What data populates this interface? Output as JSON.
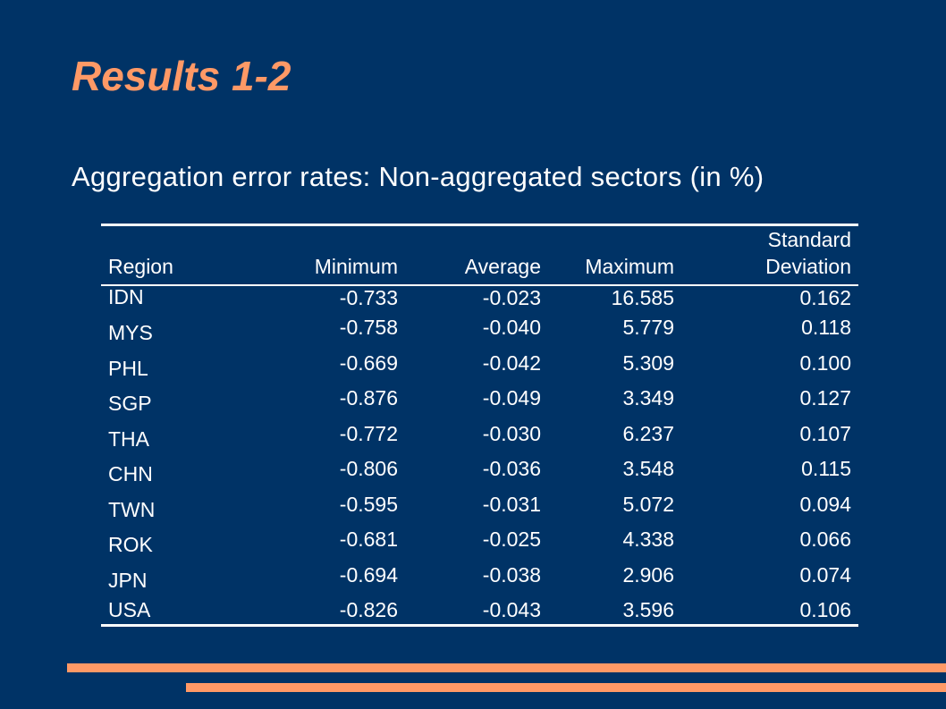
{
  "slide": {
    "title": "Results 1-2",
    "subtitle": "Aggregation error rates: Non-aggregated sectors (in %)"
  },
  "table": {
    "headers": {
      "region": "Region",
      "minimum": "Minimum",
      "average": "Average",
      "maximum": "Maximum",
      "std_line1": "Standard",
      "std_line2": "Deviation"
    },
    "rows": [
      {
        "region": "IDN",
        "minimum": "-0.733",
        "average": "-0.023",
        "maximum": "16.585",
        "std": "0.162"
      },
      {
        "region": "MYS",
        "minimum": "-0.758",
        "average": "-0.040",
        "maximum": "5.779",
        "std": "0.118"
      },
      {
        "region": "PHL",
        "minimum": "-0.669",
        "average": "-0.042",
        "maximum": "5.309",
        "std": "0.100"
      },
      {
        "region": "SGP",
        "minimum": "-0.876",
        "average": "-0.049",
        "maximum": "3.349",
        "std": "0.127"
      },
      {
        "region": "THA",
        "minimum": "-0.772",
        "average": "-0.030",
        "maximum": "6.237",
        "std": "0.107"
      },
      {
        "region": "CHN",
        "minimum": "-0.806",
        "average": "-0.036",
        "maximum": "3.548",
        "std": "0.115"
      },
      {
        "region": "TWN",
        "minimum": "-0.595",
        "average": "-0.031",
        "maximum": "5.072",
        "std": "0.094"
      },
      {
        "region": "ROK",
        "minimum": "-0.681",
        "average": "-0.025",
        "maximum": "4.338",
        "std": "0.066"
      },
      {
        "region": "JPN",
        "minimum": "-0.694",
        "average": "-0.038",
        "maximum": "2.906",
        "std": "0.074"
      },
      {
        "region": "USA",
        "minimum": "-0.826",
        "average": "-0.043",
        "maximum": "3.596",
        "std": "0.106"
      }
    ]
  },
  "colors": {
    "background": "#003366",
    "accent": "#ff9966",
    "text": "#ffffff"
  }
}
